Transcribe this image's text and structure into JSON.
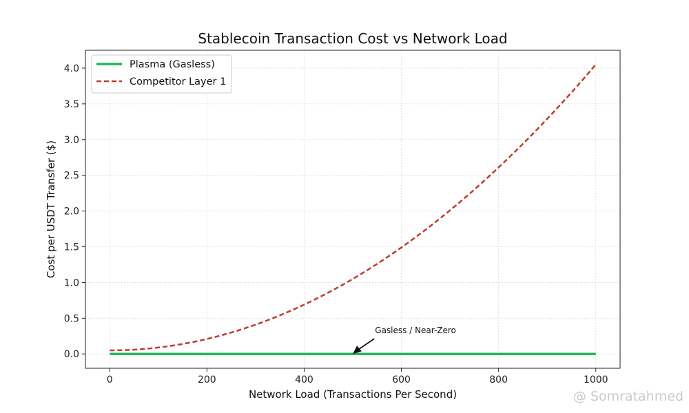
{
  "chart_data": {
    "type": "line",
    "title": "Stablecoin Transaction Cost vs Network Load",
    "xlabel": "Network Load (Transactions Per Second)",
    "ylabel": "Cost per USDT Transfer ($)",
    "xlim": [
      -50,
      1050
    ],
    "ylim": [
      -0.2,
      4.25
    ],
    "xticks": [
      0,
      200,
      400,
      600,
      800,
      1000
    ],
    "yticks": [
      0.0,
      0.5,
      1.0,
      1.5,
      2.0,
      2.5,
      3.0,
      3.5,
      4.0
    ],
    "xtick_labels": [
      "0",
      "200",
      "400",
      "600",
      "800",
      "1000"
    ],
    "ytick_labels": [
      "0.0",
      "0.5",
      "1.0",
      "1.5",
      "2.0",
      "2.5",
      "3.0",
      "3.5",
      "4.0"
    ],
    "grid": true,
    "legend_position": "top-left",
    "series": [
      {
        "name": "Plasma (Gasless)",
        "style": "solid",
        "color": "#1db954",
        "x": [
          0,
          100,
          200,
          300,
          400,
          500,
          600,
          700,
          800,
          900,
          1000
        ],
        "y": [
          0,
          0,
          0,
          0,
          0,
          0,
          0,
          0,
          0,
          0,
          0
        ]
      },
      {
        "name": "Competitor Layer 1",
        "style": "dashed",
        "color": "#c0392b",
        "x": [
          0,
          100,
          200,
          300,
          400,
          500,
          600,
          700,
          800,
          900,
          1000
        ],
        "y": [
          0.05,
          0.09,
          0.21,
          0.41,
          0.69,
          1.05,
          1.49,
          2.01,
          2.61,
          3.29,
          4.05
        ]
      }
    ],
    "annotations": [
      {
        "text": "Gasless / Near-Zero",
        "point": [
          500,
          0.0
        ],
        "text_at": [
          550,
          0.33
        ]
      }
    ]
  },
  "watermark": "@ Somratahmed"
}
